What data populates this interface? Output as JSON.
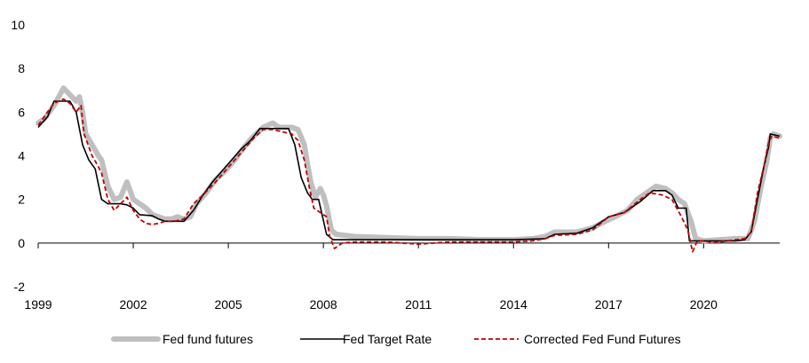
{
  "chart_data": {
    "type": "line",
    "title": "",
    "xlabel": "",
    "ylabel": "",
    "ylim": [
      -2,
      10
    ],
    "yticks": [
      -2,
      0,
      2,
      4,
      6,
      8,
      10
    ],
    "xlim": [
      1999,
      2022.4
    ],
    "xticks": [
      1999,
      2002,
      2005,
      2008,
      2011,
      2014,
      2017,
      2020
    ],
    "grid": false,
    "legend_position": "bottom",
    "series": [
      {
        "name": "Fed fund futures",
        "color": "#bfbfbf",
        "style": "thick",
        "points": [
          [
            1999.0,
            5.5
          ],
          [
            1999.2,
            5.7
          ],
          [
            1999.5,
            6.3
          ],
          [
            1999.8,
            7.1
          ],
          [
            2000.0,
            6.8
          ],
          [
            2000.2,
            6.5
          ],
          [
            2000.3,
            6.7
          ],
          [
            2000.4,
            6.0
          ],
          [
            2000.5,
            5.0
          ],
          [
            2000.7,
            4.5
          ],
          [
            2000.9,
            4.0
          ],
          [
            2001.0,
            3.8
          ],
          [
            2001.2,
            2.6
          ],
          [
            2001.4,
            2.0
          ],
          [
            2001.6,
            2.1
          ],
          [
            2001.8,
            2.8
          ],
          [
            2002.0,
            2.0
          ],
          [
            2002.2,
            1.8
          ],
          [
            2002.4,
            1.6
          ],
          [
            2002.6,
            1.3
          ],
          [
            2002.8,
            1.2
          ],
          [
            2003.0,
            1.1
          ],
          [
            2003.2,
            1.1
          ],
          [
            2003.4,
            1.2
          ],
          [
            2003.6,
            1.1
          ],
          [
            2003.8,
            1.2
          ],
          [
            2004.0,
            1.8
          ],
          [
            2004.3,
            2.3
          ],
          [
            2004.6,
            2.9
          ],
          [
            2004.9,
            3.3
          ],
          [
            2005.2,
            3.8
          ],
          [
            2005.5,
            4.4
          ],
          [
            2005.8,
            4.9
          ],
          [
            2006.1,
            5.3
          ],
          [
            2006.4,
            5.5
          ],
          [
            2006.6,
            5.3
          ],
          [
            2006.8,
            5.3
          ],
          [
            2007.0,
            5.3
          ],
          [
            2007.2,
            5.2
          ],
          [
            2007.4,
            4.5
          ],
          [
            2007.5,
            3.6
          ],
          [
            2007.6,
            2.8
          ],
          [
            2007.75,
            2.1
          ],
          [
            2007.9,
            2.5
          ],
          [
            2008.0,
            2.2
          ],
          [
            2008.1,
            1.7
          ],
          [
            2008.25,
            0.6
          ],
          [
            2008.4,
            0.4
          ],
          [
            2009.0,
            0.3
          ],
          [
            2010.0,
            0.25
          ],
          [
            2011.0,
            0.2
          ],
          [
            2012.0,
            0.2
          ],
          [
            2013.0,
            0.15
          ],
          [
            2014.0,
            0.15
          ],
          [
            2014.6,
            0.2
          ],
          [
            2015.0,
            0.3
          ],
          [
            2015.3,
            0.5
          ],
          [
            2015.7,
            0.5
          ],
          [
            2016.0,
            0.5
          ],
          [
            2016.5,
            0.7
          ],
          [
            2016.9,
            1.0
          ],
          [
            2017.2,
            1.2
          ],
          [
            2017.6,
            1.5
          ],
          [
            2017.9,
            2.0
          ],
          [
            2018.2,
            2.3
          ],
          [
            2018.5,
            2.6
          ],
          [
            2018.8,
            2.5
          ],
          [
            2019.0,
            2.3
          ],
          [
            2019.2,
            2.0
          ],
          [
            2019.4,
            1.8
          ],
          [
            2019.6,
            1.0
          ],
          [
            2019.75,
            0.2
          ],
          [
            2020.0,
            0.1
          ],
          [
            2020.5,
            0.15
          ],
          [
            2021.0,
            0.2
          ],
          [
            2021.4,
            0.2
          ],
          [
            2021.6,
            1.0
          ],
          [
            2021.8,
            2.5
          ],
          [
            2022.0,
            3.8
          ],
          [
            2022.1,
            4.8
          ],
          [
            2022.2,
            5.0
          ],
          [
            2022.4,
            4.9
          ]
        ]
      },
      {
        "name": "Fed Target Rate",
        "color": "#000000",
        "style": "solid",
        "points": [
          [
            1999.0,
            5.3
          ],
          [
            1999.3,
            5.8
          ],
          [
            1999.5,
            6.5
          ],
          [
            2000.0,
            6.5
          ],
          [
            2000.2,
            6.0
          ],
          [
            2000.4,
            4.5
          ],
          [
            2000.6,
            3.8
          ],
          [
            2000.8,
            3.4
          ],
          [
            2001.0,
            2.0
          ],
          [
            2001.2,
            1.8
          ],
          [
            2001.6,
            1.8
          ],
          [
            2001.8,
            1.75
          ],
          [
            2002.0,
            1.6
          ],
          [
            2002.2,
            1.3
          ],
          [
            2002.6,
            1.25
          ],
          [
            2002.8,
            1.1
          ],
          [
            2003.0,
            1.0
          ],
          [
            2003.6,
            1.0
          ],
          [
            2003.9,
            1.5
          ],
          [
            2004.2,
            2.2
          ],
          [
            2004.5,
            2.8
          ],
          [
            2004.8,
            3.3
          ],
          [
            2005.1,
            3.8
          ],
          [
            2005.4,
            4.3
          ],
          [
            2005.7,
            4.7
          ],
          [
            2006.0,
            5.25
          ],
          [
            2006.4,
            5.25
          ],
          [
            2006.7,
            5.25
          ],
          [
            2006.9,
            5.25
          ],
          [
            2007.1,
            4.5
          ],
          [
            2007.3,
            3.0
          ],
          [
            2007.5,
            2.3
          ],
          [
            2007.65,
            2.0
          ],
          [
            2007.85,
            2.0
          ],
          [
            2008.1,
            0.4
          ],
          [
            2008.3,
            0.15
          ],
          [
            2010.0,
            0.15
          ],
          [
            2011.0,
            0.15
          ],
          [
            2012.0,
            0.15
          ],
          [
            2013.0,
            0.15
          ],
          [
            2014.0,
            0.15
          ],
          [
            2015.0,
            0.2
          ],
          [
            2015.3,
            0.4
          ],
          [
            2016.0,
            0.45
          ],
          [
            2016.5,
            0.7
          ],
          [
            2017.0,
            1.2
          ],
          [
            2017.5,
            1.4
          ],
          [
            2018.0,
            1.9
          ],
          [
            2018.4,
            2.4
          ],
          [
            2018.8,
            2.4
          ],
          [
            2019.0,
            2.2
          ],
          [
            2019.2,
            1.6
          ],
          [
            2019.45,
            1.6
          ],
          [
            2019.55,
            0.1
          ],
          [
            2020.0,
            0.1
          ],
          [
            2021.0,
            0.1
          ],
          [
            2021.3,
            0.15
          ],
          [
            2021.5,
            0.5
          ],
          [
            2021.7,
            2.0
          ],
          [
            2021.9,
            3.5
          ],
          [
            2022.05,
            4.4
          ],
          [
            2022.1,
            5.0
          ],
          [
            2022.4,
            4.9
          ]
        ]
      },
      {
        "name": "Corrected Fed Fund Futures",
        "color": "#c00000",
        "style": "dashed",
        "points": [
          [
            1999.0,
            5.4
          ],
          [
            1999.2,
            5.8
          ],
          [
            1999.5,
            6.4
          ],
          [
            1999.8,
            6.6
          ],
          [
            2000.0,
            6.4
          ],
          [
            2000.2,
            6.0
          ],
          [
            2000.35,
            6.3
          ],
          [
            2000.45,
            5.0
          ],
          [
            2000.7,
            4.0
          ],
          [
            2000.9,
            3.5
          ],
          [
            2001.0,
            3.2
          ],
          [
            2001.2,
            2.0
          ],
          [
            2001.4,
            1.5
          ],
          [
            2001.6,
            1.8
          ],
          [
            2001.8,
            2.1
          ],
          [
            2002.0,
            1.5
          ],
          [
            2002.2,
            1.1
          ],
          [
            2002.4,
            0.9
          ],
          [
            2002.6,
            0.85
          ],
          [
            2002.8,
            0.9
          ],
          [
            2003.0,
            1.0
          ],
          [
            2003.3,
            1.0
          ],
          [
            2003.6,
            1.1
          ],
          [
            2003.9,
            1.8
          ],
          [
            2004.2,
            2.2
          ],
          [
            2004.6,
            2.8
          ],
          [
            2004.9,
            3.3
          ],
          [
            2005.2,
            3.8
          ],
          [
            2005.5,
            4.3
          ],
          [
            2005.8,
            4.8
          ],
          [
            2006.1,
            5.2
          ],
          [
            2006.4,
            5.2
          ],
          [
            2006.7,
            5.1
          ],
          [
            2007.0,
            5.0
          ],
          [
            2007.2,
            4.7
          ],
          [
            2007.4,
            3.8
          ],
          [
            2007.55,
            2.6
          ],
          [
            2007.7,
            1.6
          ],
          [
            2007.9,
            1.4
          ],
          [
            2008.1,
            1.2
          ],
          [
            2008.2,
            0.3
          ],
          [
            2008.35,
            -0.25
          ],
          [
            2008.6,
            0.0
          ],
          [
            2009.0,
            0.05
          ],
          [
            2010.0,
            0.05
          ],
          [
            2011.0,
            -0.05
          ],
          [
            2012.0,
            0.05
          ],
          [
            2013.0,
            0.05
          ],
          [
            2014.0,
            0.05
          ],
          [
            2014.6,
            0.1
          ],
          [
            2015.0,
            0.2
          ],
          [
            2015.3,
            0.35
          ],
          [
            2016.0,
            0.4
          ],
          [
            2016.5,
            0.6
          ],
          [
            2017.0,
            1.2
          ],
          [
            2017.5,
            1.4
          ],
          [
            2018.0,
            2.0
          ],
          [
            2018.3,
            2.3
          ],
          [
            2018.7,
            2.2
          ],
          [
            2019.0,
            2.0
          ],
          [
            2019.3,
            1.2
          ],
          [
            2019.5,
            0.6
          ],
          [
            2019.65,
            -0.4
          ],
          [
            2019.8,
            0.1
          ],
          [
            2020.0,
            0.1
          ],
          [
            2020.3,
            0.0
          ],
          [
            2021.0,
            0.15
          ],
          [
            2021.3,
            0.2
          ],
          [
            2021.5,
            0.5
          ],
          [
            2021.7,
            2.3
          ],
          [
            2021.9,
            3.5
          ],
          [
            2022.05,
            4.6
          ],
          [
            2022.15,
            4.9
          ],
          [
            2022.4,
            4.8
          ]
        ]
      }
    ]
  }
}
